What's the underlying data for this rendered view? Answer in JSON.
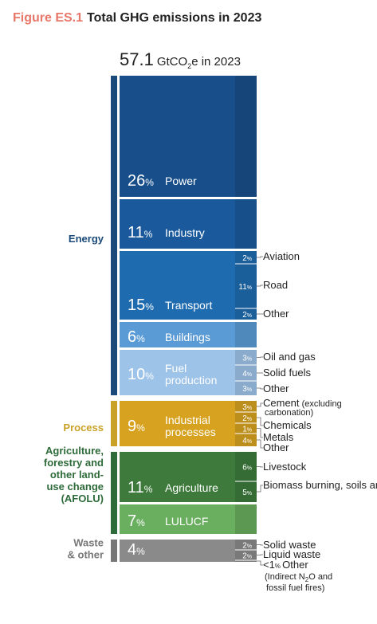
{
  "header": {
    "figure_label": "Figure ES.1",
    "figure_title": "Total GHG emissions in 2023"
  },
  "total": {
    "value": "57.1",
    "unit_prefix": "GtCO",
    "unit_sub": "2",
    "unit_suffix": "e in 2023"
  },
  "colors": {
    "energy_dark": "#184f8a",
    "energy_mid": "#1e6bb0",
    "energy_light": "#5b9bd5",
    "energy_pale": "#9ec3e8",
    "process": "#d6a21f",
    "afolu_dark": "#3d7a3c",
    "afolu_light": "#6aae5f",
    "waste": "#8a8a8a",
    "energy_label": "#1a4a7a",
    "process_label": "#c9a227",
    "afolu_label": "#2e6b3a",
    "waste_label": "#777777"
  },
  "chart_data": {
    "type": "bar",
    "title": "Total GHG emissions in 2023",
    "total": 57.1,
    "unit": "GtCO2e",
    "groups": [
      {
        "name": "Energy",
        "color": "#1a4a7a"
      },
      {
        "name": "Process",
        "color": "#c9a227"
      },
      {
        "name": "Agriculture, forestry and other land-use change (AFOLU)",
        "color": "#2e6b3a"
      },
      {
        "name": "Waste & other",
        "color": "#777777"
      }
    ],
    "segments": [
      {
        "group": "Energy",
        "name": "Power",
        "pct_text": "26",
        "value": 26,
        "color": "#184f8a",
        "text_color": "#ffffff",
        "label_lines": [
          "Power"
        ],
        "subs": []
      },
      {
        "group": "Energy",
        "name": "Industry",
        "pct_text": "11",
        "value": 11,
        "color": "#1a5a9c",
        "text_color": "#ffffff",
        "label_lines": [
          "Industry"
        ],
        "subs": []
      },
      {
        "group": "Energy",
        "name": "Transport",
        "pct_text": "15",
        "value": 15,
        "color": "#1e6bb0",
        "text_color": "#ffffff",
        "label_lines": [
          "Transport"
        ],
        "subs": [
          {
            "value": "2",
            "label": "Aviation"
          },
          {
            "value": "11",
            "label": "Road"
          },
          {
            "value": "2",
            "label": "Other"
          }
        ]
      },
      {
        "group": "Energy",
        "name": "Buildings",
        "pct_text": "6",
        "value": 6,
        "color": "#5b9bd5",
        "text_color": "#ffffff",
        "label_lines": [
          "Buildings"
        ],
        "subs": []
      },
      {
        "group": "Energy",
        "name": "Fuel production",
        "pct_text": "10",
        "value": 10,
        "color": "#9ec3e8",
        "text_color": "#ffffff",
        "label_lines": [
          "Fuel",
          "production"
        ],
        "subs": [
          {
            "value": "3",
            "label": "Oil and gas"
          },
          {
            "value": "4",
            "label": "Solid fuels"
          },
          {
            "value": "3",
            "label": "Other"
          }
        ]
      },
      {
        "group": "Process",
        "name": "Industrial processes",
        "pct_text": "9",
        "value": 9,
        "color": "#d6a21f",
        "text_color": "#ffffff",
        "label_lines": [
          "Industrial",
          "processes"
        ],
        "subs": [
          {
            "value": "3",
            "label": "Cement",
            "note": "(excluding carbonation)"
          },
          {
            "value": "2",
            "label": "Chemicals"
          },
          {
            "value": "1",
            "label": "Metals"
          },
          {
            "value": "4",
            "label": "Other"
          }
        ]
      },
      {
        "group": "AFOLU",
        "name": "Agriculture",
        "pct_text": "11",
        "value": 11,
        "color": "#3d7a3c",
        "text_color": "#ffffff",
        "label_lines": [
          "Agriculture"
        ],
        "subs": [
          {
            "value": "6",
            "label": "Livestock"
          },
          {
            "value": "5",
            "label": "Biomass burning, soils and rice"
          }
        ]
      },
      {
        "group": "AFOLU",
        "name": "LULUCF",
        "pct_text": "7",
        "value": 7,
        "color": "#6aae5f",
        "text_color": "#ffffff",
        "label_lines": [
          "LULUCF"
        ],
        "subs": []
      },
      {
        "group": "Waste & other",
        "name": "Waste & other",
        "pct_text": "4",
        "value": 4,
        "color": "#8a8a8a",
        "text_color": "#ffffff",
        "label_lines": [],
        "subs": [
          {
            "value": "2",
            "label": "Solid waste"
          },
          {
            "value": "2",
            "label": "Liquid waste"
          },
          {
            "value": "<1",
            "label": "Other",
            "note": "(Indirect N2O and fossil fuel fires)"
          }
        ]
      }
    ],
    "group_labels": [
      {
        "group": "Energy",
        "lines": [
          "Energy"
        ]
      },
      {
        "group": "Process",
        "lines": [
          "Process"
        ]
      },
      {
        "group": "AFOLU",
        "lines": [
          "Agriculture,",
          "forestry and",
          "other land-",
          "use change",
          "(AFOLU)"
        ]
      },
      {
        "group": "Waste & other",
        "lines": [
          "Waste",
          "& other"
        ]
      }
    ],
    "pct_suffix": "%"
  }
}
